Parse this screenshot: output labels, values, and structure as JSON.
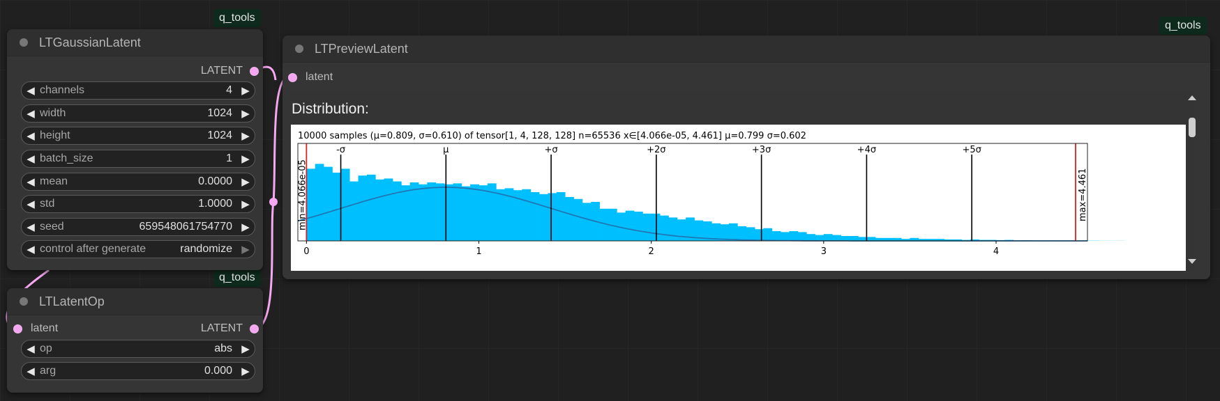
{
  "canvas": {
    "tags": [
      "q_tools",
      "q_tools",
      "q_tools"
    ]
  },
  "gaussian_node": {
    "title": "LTGaussianLatent",
    "output_label": "LATENT",
    "widgets": [
      {
        "label": "channels",
        "value": "4"
      },
      {
        "label": "width",
        "value": "1024"
      },
      {
        "label": "height",
        "value": "1024"
      },
      {
        "label": "batch_size",
        "value": "1"
      },
      {
        "label": "mean",
        "value": "0.0000"
      },
      {
        "label": "std",
        "value": "1.0000"
      },
      {
        "label": "seed",
        "value": "659548061754770"
      },
      {
        "label": "control after generate",
        "value": "randomize"
      }
    ]
  },
  "op_node": {
    "title": "LTLatentOp",
    "input_label": "latent",
    "output_label": "LATENT",
    "widgets": [
      {
        "label": "op",
        "value": "abs"
      },
      {
        "label": "arg",
        "value": "0.000"
      }
    ]
  },
  "preview_node": {
    "title": "LTPreviewLatent",
    "input_label": "latent",
    "section_title": "Distribution:"
  },
  "chart_data": {
    "type": "bar",
    "title": "10000 samples (μ=0.809, σ=0.610) of tensor[1, 4, 128, 128] n=65536 x∈[4.066e-05, 4.461] μ=0.799 σ=0.602",
    "xlim": [
      -0.05,
      4.53
    ],
    "ylim": [
      0,
      1.0
    ],
    "xticks": [
      0,
      1,
      2,
      3,
      4
    ],
    "xtick_labels": [
      "0",
      "1",
      "2",
      "3",
      "4"
    ],
    "bin_width": 0.05,
    "bin_start": 0.0,
    "values": [
      0.74,
      0.79,
      0.76,
      0.7,
      0.74,
      0.61,
      0.67,
      0.68,
      0.63,
      0.64,
      0.61,
      0.57,
      0.6,
      0.58,
      0.6,
      0.59,
      0.58,
      0.59,
      0.56,
      0.58,
      0.57,
      0.59,
      0.53,
      0.54,
      0.52,
      0.53,
      0.5,
      0.48,
      0.49,
      0.5,
      0.45,
      0.43,
      0.39,
      0.4,
      0.33,
      0.33,
      0.29,
      0.31,
      0.3,
      0.28,
      0.28,
      0.26,
      0.24,
      0.22,
      0.24,
      0.21,
      0.2,
      0.18,
      0.17,
      0.18,
      0.15,
      0.14,
      0.12,
      0.13,
      0.1,
      0.09,
      0.1,
      0.09,
      0.07,
      0.06,
      0.07,
      0.06,
      0.05,
      0.05,
      0.04,
      0.04,
      0.03,
      0.03,
      0.03,
      0.02,
      0.03,
      0.02,
      0.02,
      0.02,
      0.015,
      0.015,
      0.01,
      0.015,
      0.01,
      0.01,
      0.008,
      0.01,
      0.005,
      0.006,
      0.004,
      0.003,
      0.004,
      0.003,
      0.002,
      0.002,
      0.002,
      0.002,
      0.001,
      0.001,
      0.001
    ],
    "curve": {
      "mu": 0.809,
      "sigma": 0.61,
      "peak": 0.55
    },
    "sigma_lines": [
      {
        "x": 0.199,
        "label": "-σ"
      },
      {
        "x": 0.809,
        "label": "μ"
      },
      {
        "x": 1.419,
        "label": "+σ"
      },
      {
        "x": 2.029,
        "label": "+2σ"
      },
      {
        "x": 2.639,
        "label": "+3σ"
      },
      {
        "x": 3.249,
        "label": "+4σ"
      },
      {
        "x": 3.859,
        "label": "+5σ"
      }
    ],
    "min": {
      "x": 4.066e-05,
      "label": "min=4.066e-05"
    },
    "max": {
      "x": 4.461,
      "label": "max=4.461"
    },
    "colors": {
      "bars": "#00bfff",
      "curve": "#1f77b4",
      "minmax": "#e02020",
      "sigma": "#000000"
    }
  }
}
